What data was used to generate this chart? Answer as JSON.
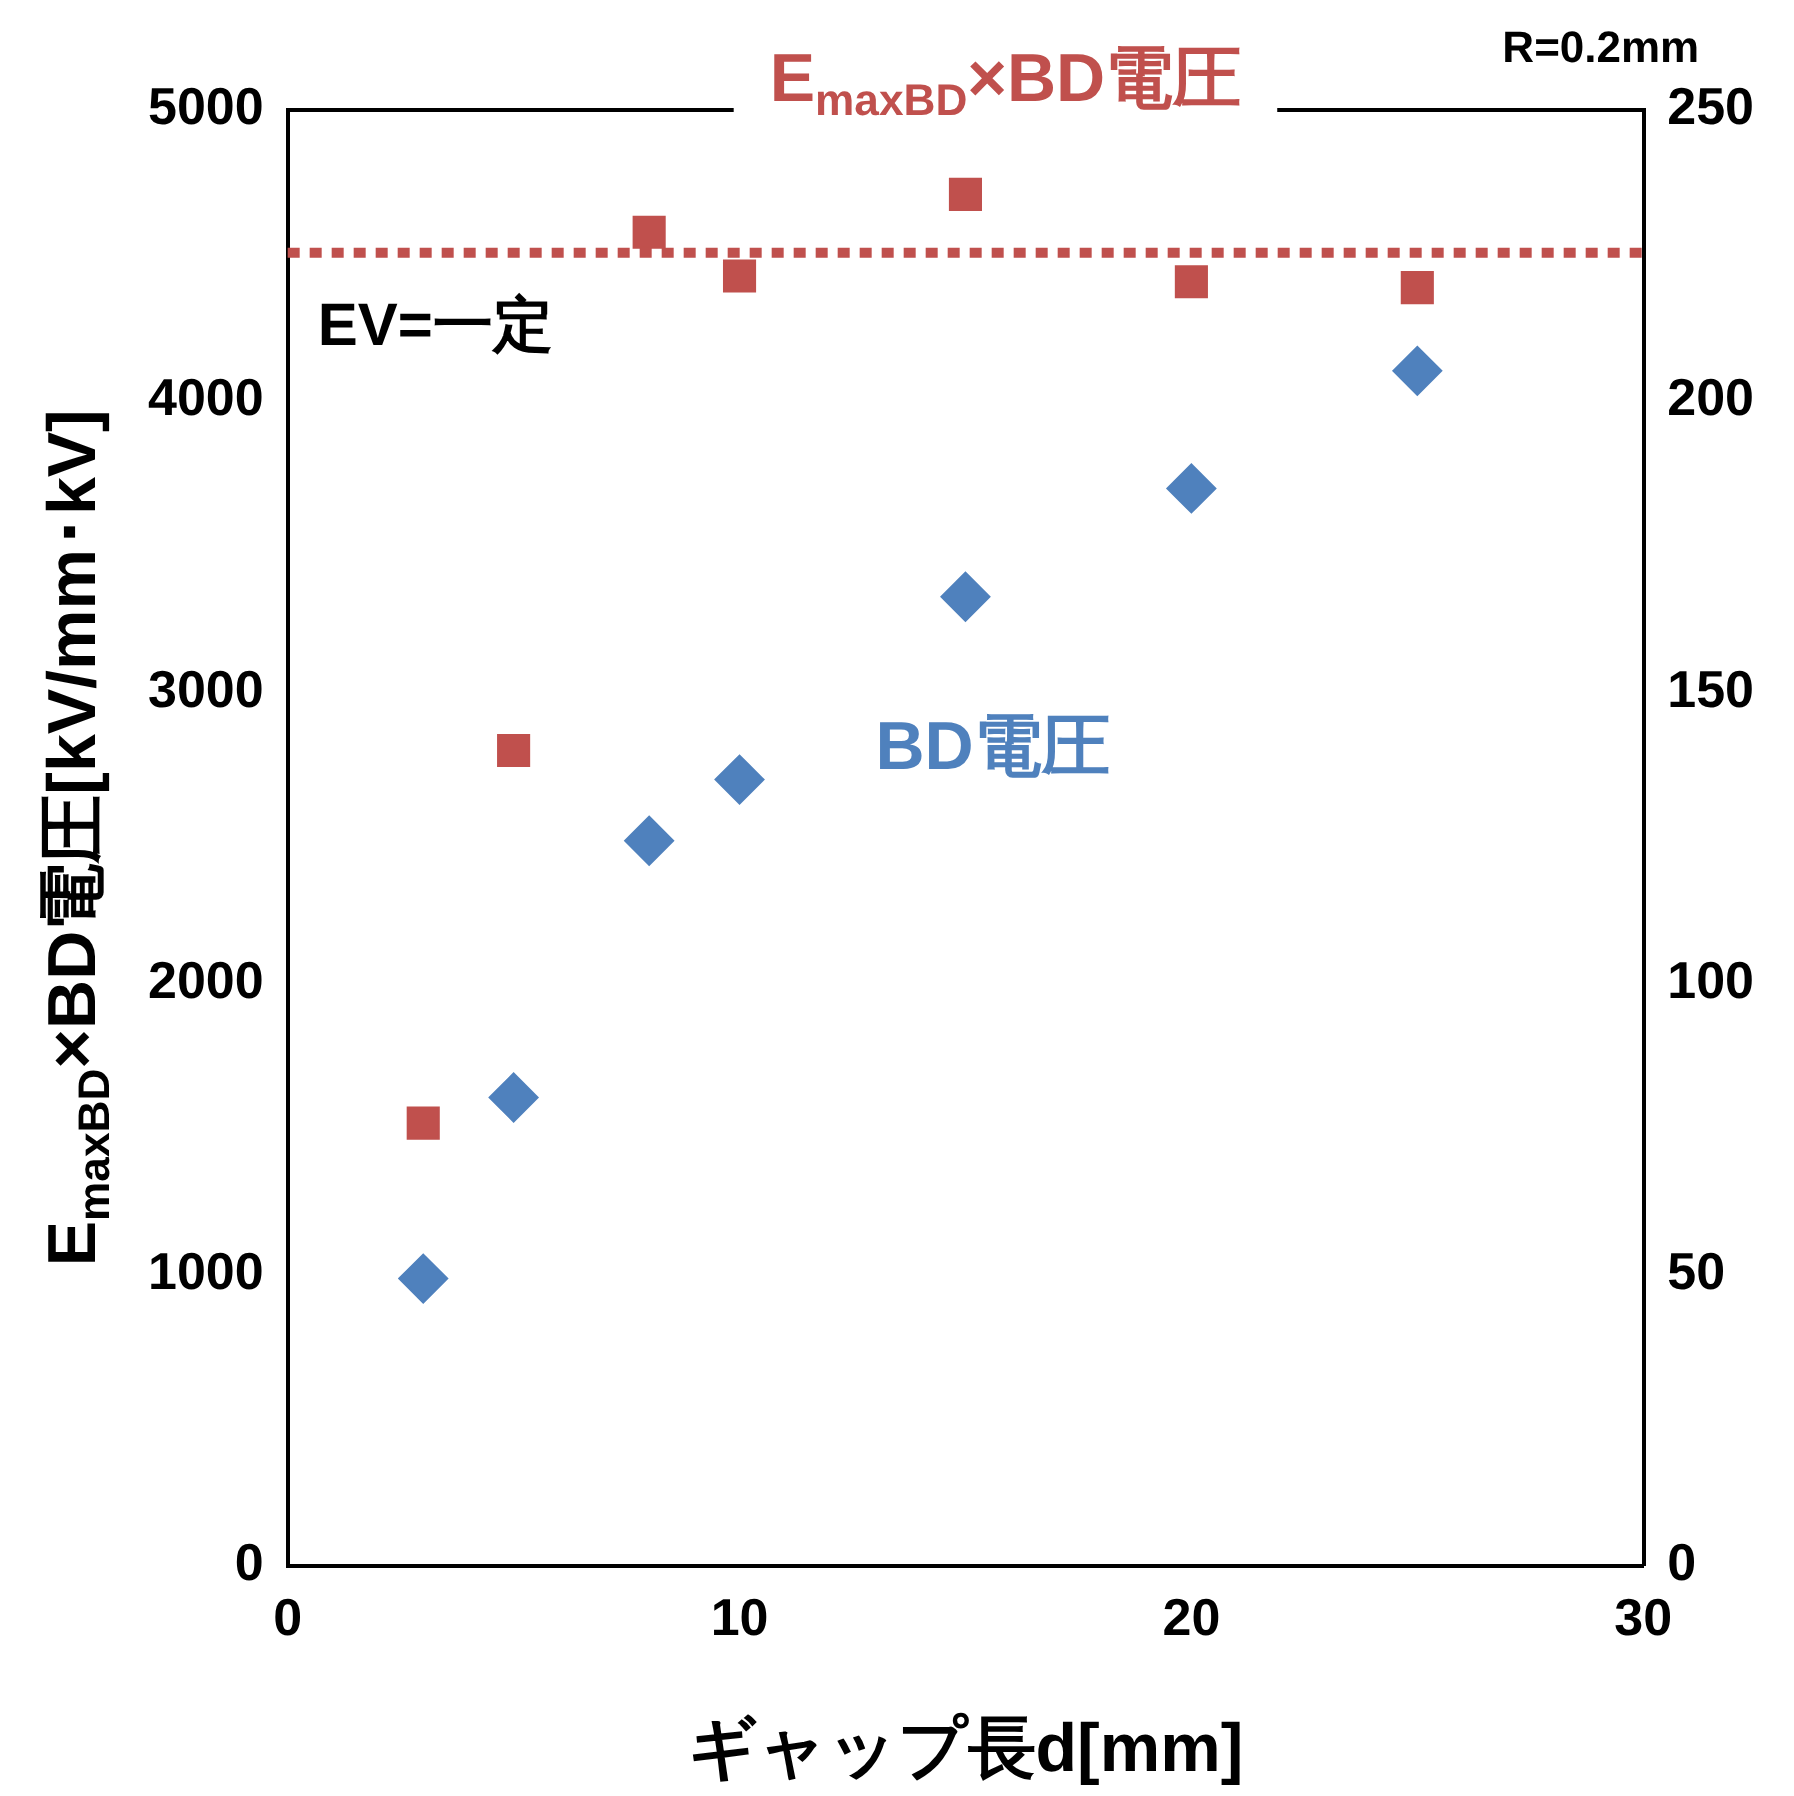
{
  "chart_data": {
    "type": "scatter",
    "x": [
      3,
      5,
      8,
      10,
      15,
      20,
      25
    ],
    "xlabel": "ギャップ長d[mm]",
    "ylabel": "E$_{maxBD}$×BD電圧[kV/mm･kV]",
    "xlim": [
      0,
      30
    ],
    "xticks": [
      0,
      10,
      20,
      30
    ],
    "ylim": [
      0,
      5000
    ],
    "yticks": [
      0,
      1000,
      2000,
      3000,
      4000,
      5000
    ],
    "y2lim": [
      0,
      250
    ],
    "y2ticks": [
      0,
      50,
      100,
      150,
      200,
      250
    ],
    "grid": false,
    "legend": false,
    "series": [
      {
        "name": "E$_{maxBD}$×BD電圧",
        "color": "#c0504d",
        "marker": "square",
        "values": [
          1520,
          2800,
          4580,
          4430,
          4710,
          4410,
          4390
        ]
      },
      {
        "name": "BD電圧",
        "color": "#4f81bd",
        "marker": "diamond",
        "axis": "y2",
        "values": [
          49.3,
          80.4,
          124.5,
          135,
          166.4,
          185,
          205.2
        ]
      }
    ],
    "ref_lines": [
      {
        "axis": "y",
        "value": 4510,
        "label": "EV=一定",
        "color": "#c0504d",
        "line_style": "dotted"
      }
    ],
    "annotations": [
      "R=0.2mm"
    ]
  }
}
